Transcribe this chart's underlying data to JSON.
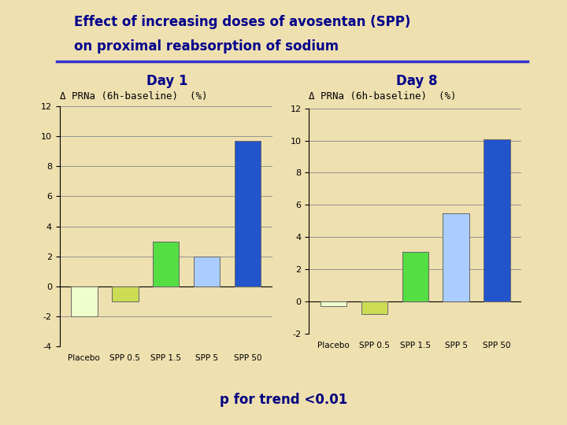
{
  "title_line1": "Effect of increasing doses of avosentan (SPP)",
  "title_line2": "on proximal reabsorption of sodium",
  "title_color": "#00008B",
  "title_fontsize": 12,
  "separator_color": "#3333CC",
  "background_color": "#EFE0B0",
  "plot_bg_color": "#EFE0B0",
  "day1_label": "Day 1",
  "day8_label": "Day 8",
  "day_label_fontsize": 12,
  "ylabel": "Δ PRNa (6h-baseline)  (%)",
  "ylabel_fontsize": 9,
  "categories": [
    "Placebo",
    "SPP 0.5",
    "SPP 1.5",
    "SPP 5",
    "SPP 50"
  ],
  "day1_values": [
    -2.0,
    -1.0,
    3.0,
    2.0,
    9.7
  ],
  "day8_values": [
    -0.3,
    -0.8,
    3.1,
    5.5,
    10.1
  ],
  "day1_colors": [
    "#EEFFCC",
    "#CCDD55",
    "#55DD44",
    "#AACCFF",
    "#2255CC"
  ],
  "day8_colors": [
    "#EEFFCC",
    "#CCDD55",
    "#55DD44",
    "#AACCFF",
    "#2255CC"
  ],
  "day1_ylim": [
    -4,
    12
  ],
  "day8_ylim": [
    -2,
    12
  ],
  "day1_yticks": [
    -4,
    -2,
    0,
    2,
    4,
    6,
    8,
    10,
    12
  ],
  "day8_yticks": [
    -2,
    0,
    2,
    4,
    6,
    8,
    10,
    12
  ],
  "grid_color": "#888888",
  "bar_edge_color": "#666666",
  "footnote": "p for trend <0.01",
  "footnote_fontsize": 12,
  "footnote_color": "#000080"
}
